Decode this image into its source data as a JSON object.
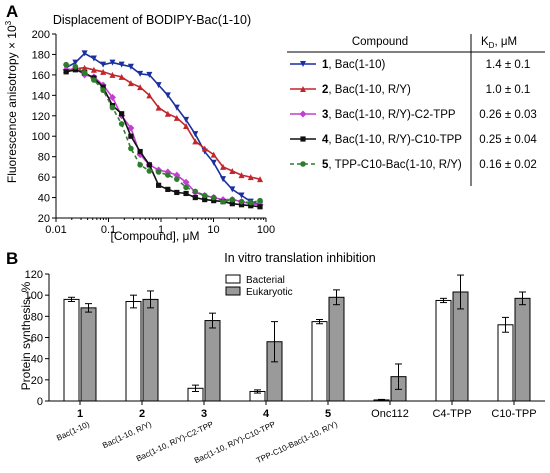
{
  "colors": {
    "series1": "#1a2fa0",
    "series2": "#c1272d",
    "series3": "#c43ed1",
    "series4": "#111111",
    "series5": "#2d7d2d",
    "bar_bacterial": "#ffffff",
    "bar_eukaryotic": "#9a9a9a"
  },
  "chart_data": [
    {
      "panel": "A",
      "type": "scatter",
      "title": "Displacement of BODIPY-Bac(1-10)",
      "xlabel": "[Compound], μM",
      "ylabel": "Fluorescence anisotropy × 10",
      "ylabel_sup": "3",
      "x_scale": "log",
      "xlim": [
        0.01,
        100
      ],
      "ylim": [
        20,
        200
      ],
      "x_ticks": [
        0.01,
        0.1,
        1,
        10,
        100
      ],
      "x_tick_labels": [
        "0.01",
        "0.1",
        "1",
        "10",
        "100"
      ],
      "y_ticks": [
        20,
        40,
        60,
        80,
        100,
        120,
        140,
        160,
        180,
        200
      ],
      "y_tick_labels": [
        "20",
        "40",
        "60",
        "80",
        "100",
        "120",
        "140",
        "160",
        "180",
        "200"
      ],
      "x": [
        0.0156,
        0.0234,
        0.0351,
        0.0527,
        0.079,
        0.119,
        0.178,
        0.267,
        0.4,
        0.6,
        0.9,
        1.35,
        2.0,
        3.0,
        4.5,
        6.8,
        10.1,
        15.2,
        22.8,
        34.2,
        51.3,
        77
      ],
      "series": [
        {
          "number": "1",
          "name": "Bac(1-10)",
          "kd": "1.4 ± 0.1",
          "marker": "triangle-down",
          "y": [
            167,
            172,
            181,
            176,
            170,
            172,
            170,
            168,
            161,
            160,
            150,
            140,
            128,
            116,
            102,
            85,
            74,
            58,
            48,
            42,
            36,
            33
          ]
        },
        {
          "number": "2",
          "name": "Bac(1-10, R/Y)",
          "kd": "1.0 ± 0.1",
          "marker": "triangle-up",
          "y": [
            165,
            166,
            167,
            165,
            163,
            160,
            158,
            152,
            148,
            140,
            128,
            122,
            118,
            110,
            95,
            88,
            82,
            70,
            66,
            62,
            60,
            58
          ]
        },
        {
          "number": "3",
          "name": "Bac(1-10, R/Y)-C2-TPP",
          "kd": "0.26 ± 0.03",
          "marker": "diamond",
          "y": [
            165,
            166,
            160,
            158,
            150,
            138,
            120,
            108,
            82,
            72,
            67,
            65,
            62,
            55,
            45,
            42,
            40,
            38,
            38,
            36,
            34,
            33
          ]
        },
        {
          "number": "4",
          "name": "Bac(1-10, R/Y)-C10-TPP",
          "kd": "0.25 ± 0.04",
          "marker": "square",
          "y": [
            163,
            165,
            162,
            157,
            148,
            130,
            122,
            100,
            85,
            72,
            52,
            48,
            45,
            44,
            40,
            38,
            37,
            36,
            34,
            33,
            32,
            31
          ]
        },
        {
          "number": "5",
          "name": "TPP-C10-Bac(1-10, R/Y)",
          "kd": "0.16 ± 0.02",
          "marker": "circle",
          "y": [
            170,
            168,
            162,
            155,
            145,
            128,
            112,
            88,
            72,
            66,
            65,
            62,
            58,
            50,
            46,
            42,
            40,
            36,
            38,
            36,
            35,
            37
          ]
        }
      ],
      "table": {
        "header_compound": "Compound",
        "header_kd": "K",
        "header_kd_sub": "D",
        "header_kd_unit": ",  μM"
      }
    },
    {
      "panel": "B",
      "type": "bar",
      "title": "In vitro translation inhibition",
      "ylabel": "Protein synthesis, %",
      "ylim": [
        0,
        120
      ],
      "y_ticks": [
        0,
        20,
        40,
        60,
        80,
        100,
        120
      ],
      "y_tick_labels": [
        "0",
        "20",
        "40",
        "60",
        "80",
        "100",
        "120"
      ],
      "categories": [
        "1",
        "2",
        "3",
        "4",
        "5",
        "Onc112",
        "C4-TPP",
        "C10-TPP"
      ],
      "category_bold": [
        true,
        true,
        true,
        true,
        true,
        false,
        false,
        false
      ],
      "sublabels": [
        "Bac(1-10)",
        "Bac(1-10, R/Y)",
        "Bac(1-10, R/Y)-C2-TPP",
        "Bac(1-10, R/Y)-C10-TPP",
        "TPP-C10-Bac(1-10, R/Y)",
        "",
        "",
        ""
      ],
      "legend_placement": "top-center",
      "series": [
        {
          "name": "Bacterial",
          "values": [
            96,
            94,
            12,
            9,
            75,
            1,
            95,
            72
          ],
          "errors": [
            2,
            6,
            3,
            1.5,
            2,
            0.5,
            2,
            7
          ]
        },
        {
          "name": "Eukaryotic",
          "values": [
            88,
            96,
            76,
            56,
            98,
            23,
            103,
            97
          ],
          "errors": [
            4,
            8,
            7,
            19,
            7,
            12,
            16,
            6
          ]
        }
      ]
    }
  ]
}
